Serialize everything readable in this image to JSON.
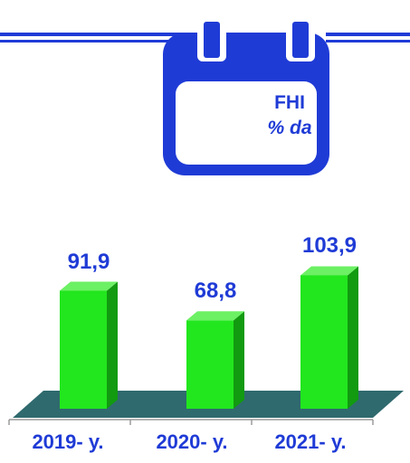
{
  "badge": {
    "title": "FHI",
    "subtitle": "% da"
  },
  "colors": {
    "accent": "#1f3bd6",
    "bar_front": "#22e61e",
    "bar_side": "#129a10",
    "bar_top": "#6cf064",
    "floor": "#2f6a6e"
  },
  "chart_data": {
    "type": "bar",
    "categories": [
      "2019- y.",
      "2020- y.",
      "2021- y."
    ],
    "values": [
      91.9,
      68.8,
      103.9
    ],
    "value_labels": [
      "91,9",
      "68,8",
      "103,9"
    ],
    "title": "",
    "xlabel": "",
    "ylabel": "",
    "grid": false,
    "legend": "none"
  }
}
